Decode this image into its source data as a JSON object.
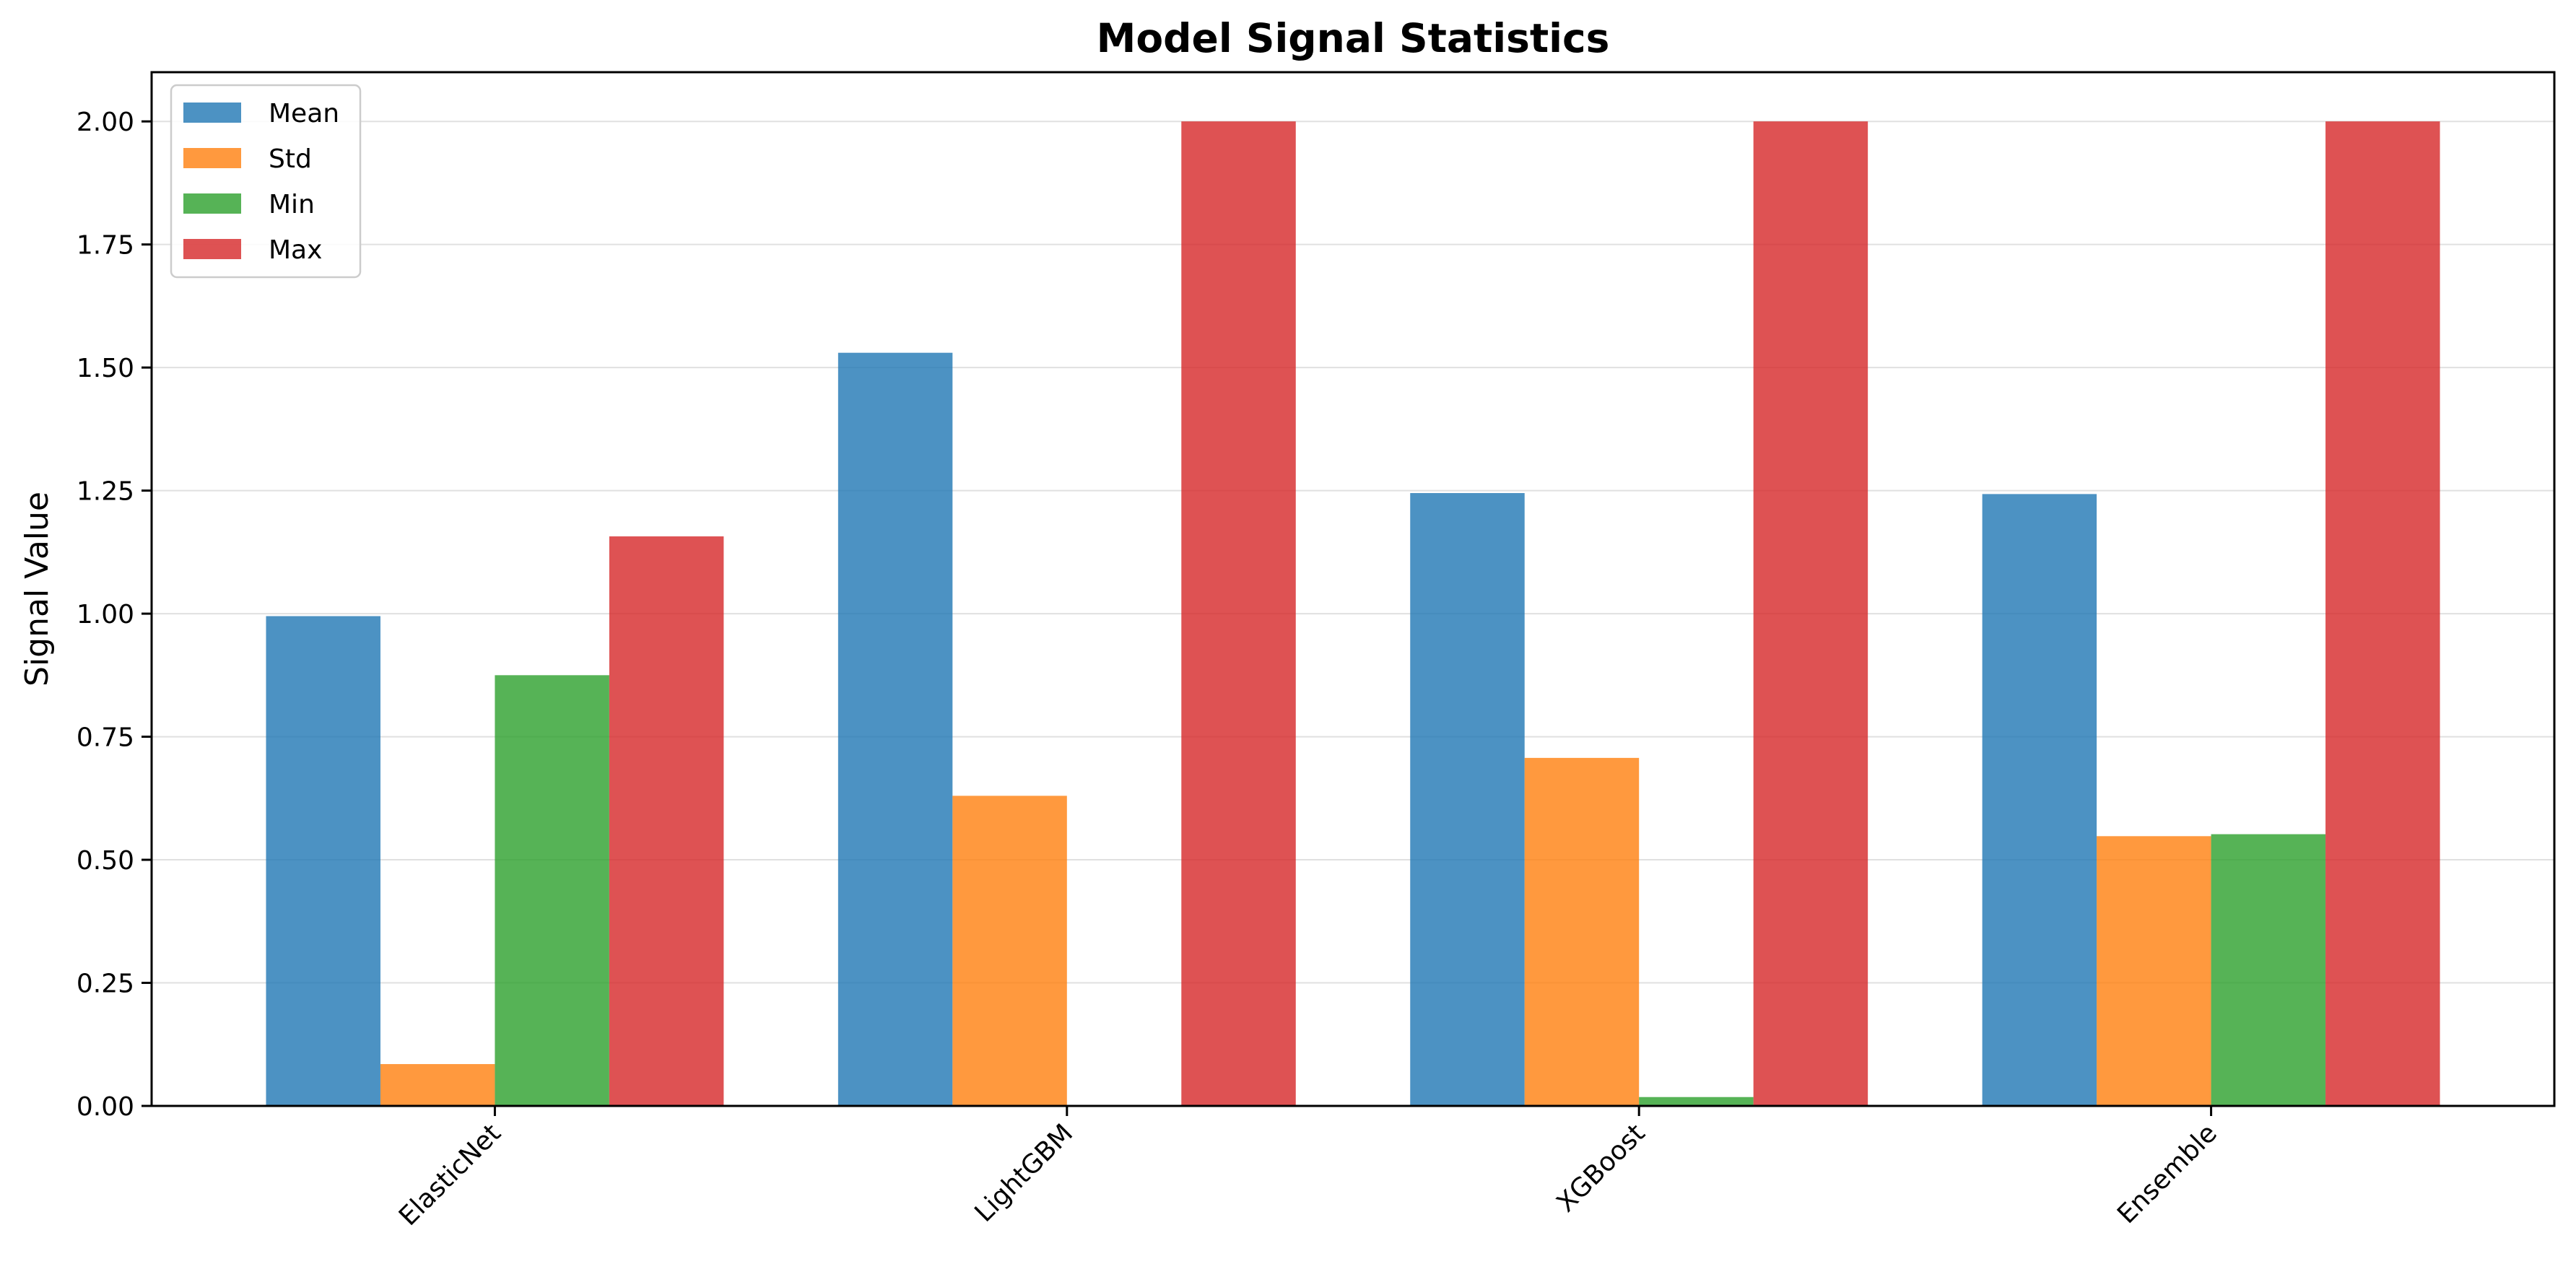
{
  "chart_data": {
    "type": "bar",
    "title": "Model Signal Statistics",
    "xlabel": "",
    "ylabel": "Signal Value",
    "categories": [
      "ElasticNet",
      "LightGBM",
      "XGBoost",
      "Ensemble"
    ],
    "series": [
      {
        "name": "Mean",
        "color": "#1f77b4",
        "values": [
          0.995,
          1.53,
          1.245,
          1.243
        ]
      },
      {
        "name": "Std",
        "color": "#ff7f0e",
        "values": [
          0.085,
          0.63,
          0.707,
          0.548
        ]
      },
      {
        "name": "Min",
        "color": "#2ca02c",
        "values": [
          0.875,
          0.0,
          0.018,
          0.552
        ]
      },
      {
        "name": "Max",
        "color": "#d62728",
        "values": [
          1.157,
          2.0,
          2.0,
          2.0
        ]
      }
    ],
    "ylim": [
      0,
      2.1
    ],
    "yticks": [
      0.0,
      0.25,
      0.5,
      0.75,
      1.0,
      1.25,
      1.5,
      1.75,
      2.0
    ],
    "ytick_labels": [
      "0.00",
      "0.25",
      "0.50",
      "0.75",
      "1.00",
      "1.25",
      "1.50",
      "1.75",
      "2.00"
    ],
    "grid": "y-axis, light gray",
    "legend_position": "upper-left",
    "bar_opacity": 0.8
  }
}
